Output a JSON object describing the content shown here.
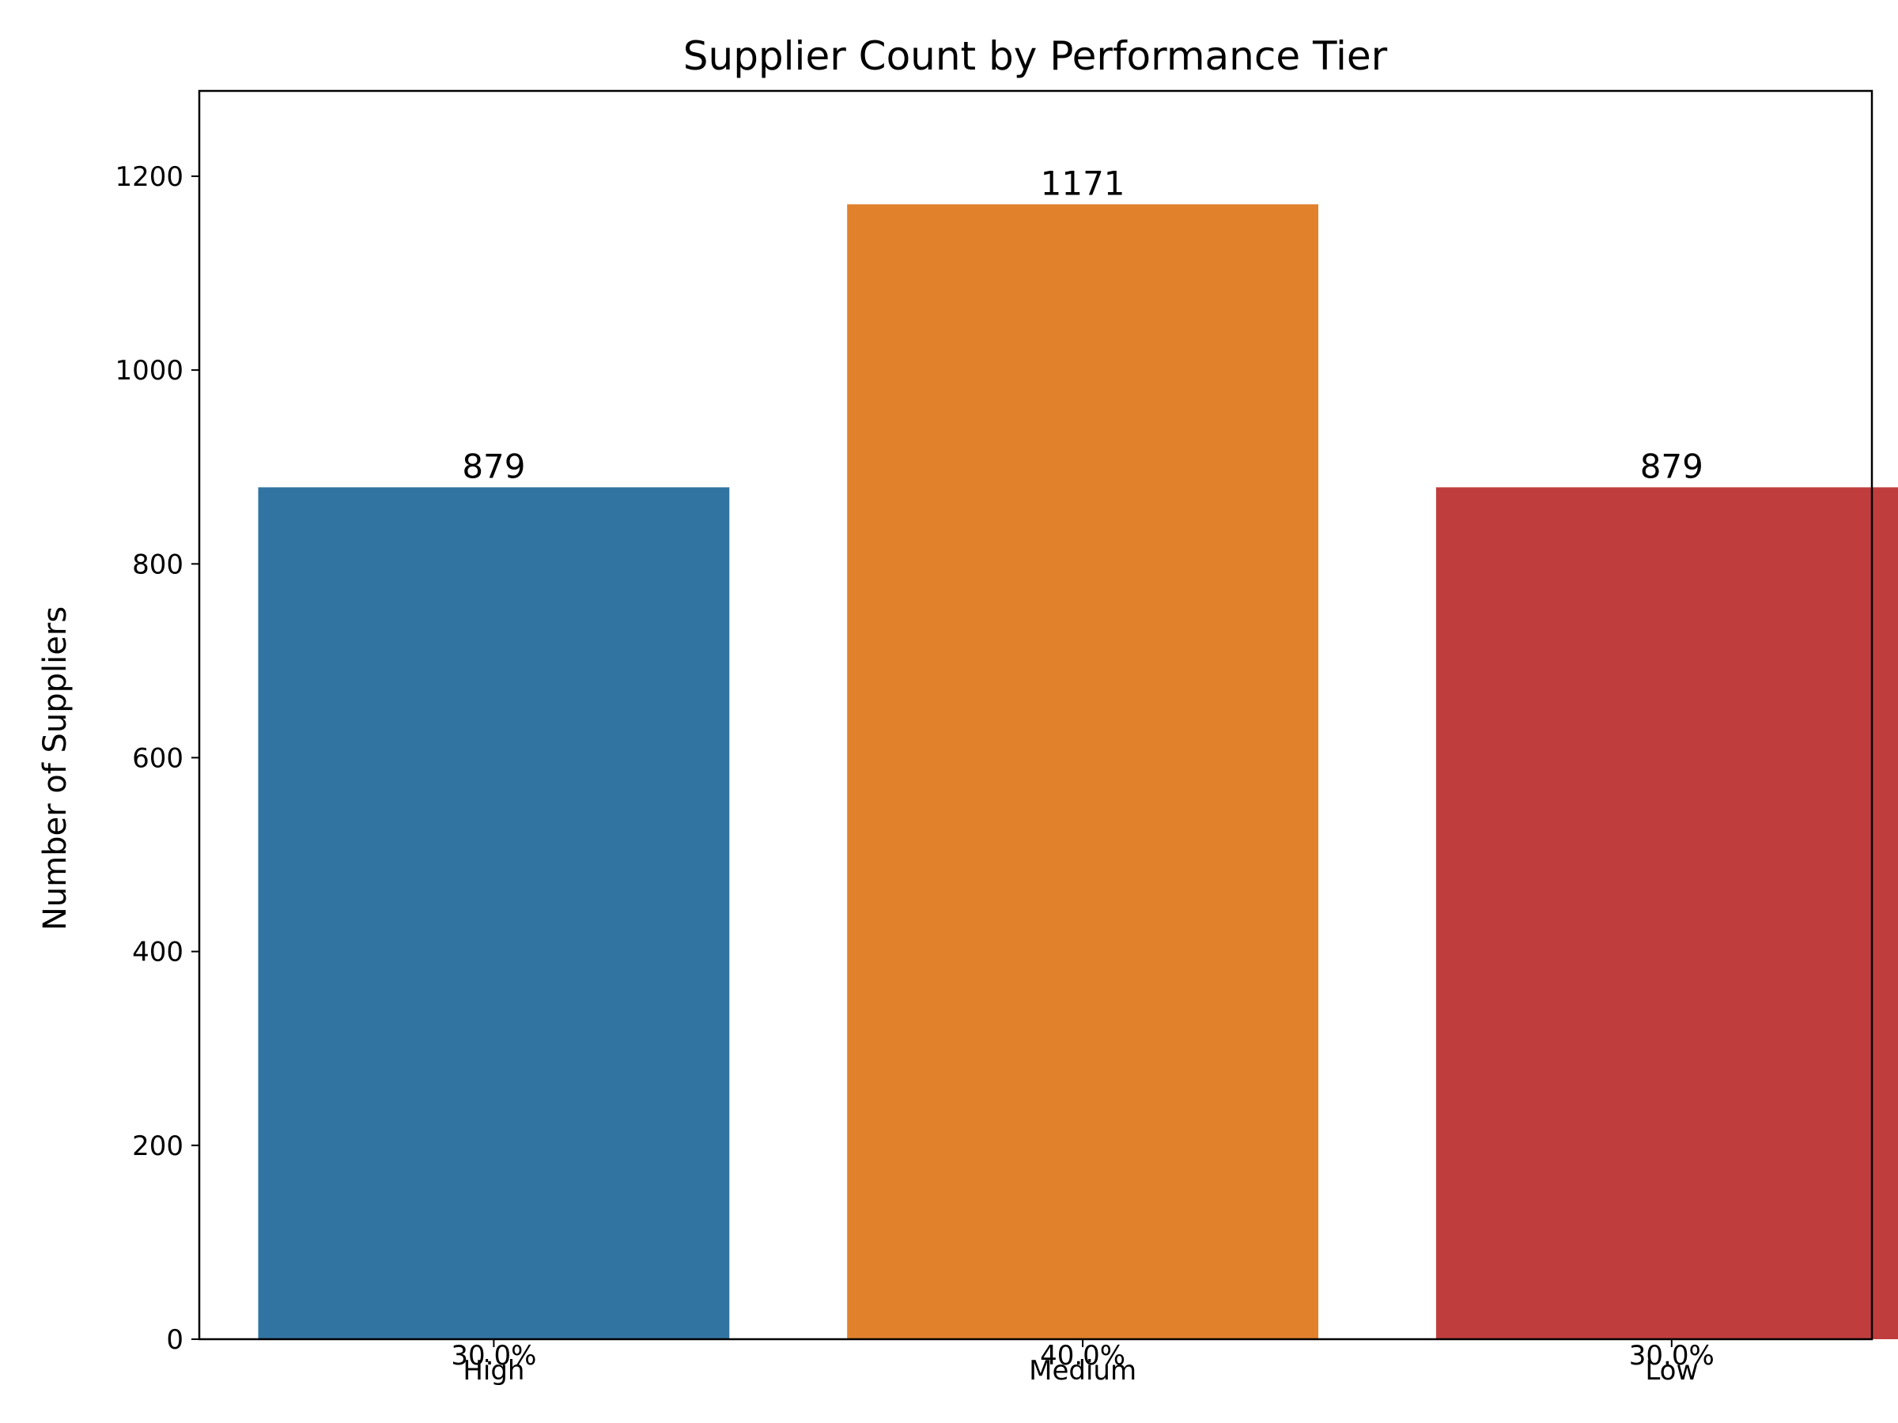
{
  "chart_data": {
    "type": "bar",
    "title": "Supplier Count by Performance Tier",
    "xlabel": "",
    "ylabel": "Number of Suppliers",
    "categories": [
      "High",
      "Medium",
      "Low"
    ],
    "values": [
      879,
      1171,
      879
    ],
    "value_labels": [
      "879",
      "1171",
      "879"
    ],
    "percent_labels": [
      "30.0%",
      "40.0%",
      "30.0%"
    ],
    "colors": [
      "#3274a1",
      "#e1812c",
      "#c03d3e"
    ],
    "ylim": [
      0,
      1288
    ],
    "yticks": [
      0,
      200,
      400,
      600,
      800,
      1000,
      1200
    ],
    "grid": false,
    "legend": "none"
  }
}
